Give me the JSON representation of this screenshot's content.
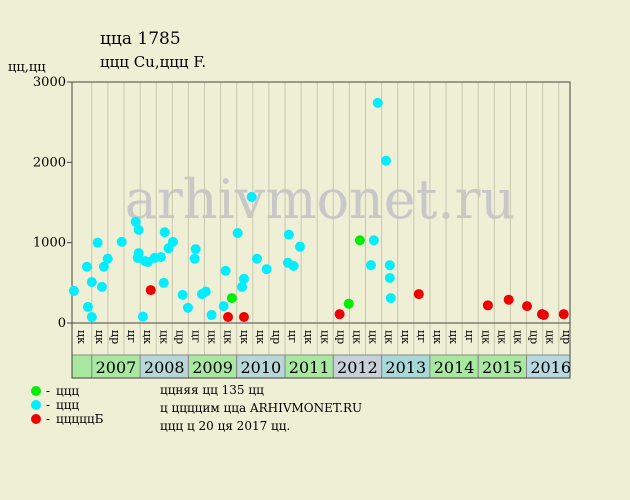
{
  "chart_data": {
    "type": "scatter",
    "title": "ццa 1785",
    "subtitle": "ццц Cu,ццц F.",
    "ylabel": "цц,цц",
    "watermark": "arhivmonet.ru",
    "xlim": [
      2006.59,
      2016.9
    ],
    "ylim": [
      0,
      3000
    ],
    "yticks": [
      0,
      1000,
      2000,
      3000
    ],
    "years": [
      null,
      "2007",
      "2008",
      "2009",
      "2010",
      "2011",
      "2012",
      "2013",
      "2014",
      "2015",
      "2016"
    ],
    "year_colors": [
      "#a8e8a0",
      "#a8e8a0",
      "#b8d8d8",
      "#a8e8a0",
      "#b8d8d8",
      "#a8e8a0",
      "#c8d0d8",
      "#a8d8d8",
      "#a8e8a0",
      "#a8e8a0",
      "#b8d8e0"
    ],
    "columns": [
      "цк",
      "цк",
      "цр",
      "цг",
      "цк",
      "цк",
      "цр",
      "цг",
      "цк",
      "цк",
      "цк",
      "цк",
      "цр",
      "цг",
      "цк",
      "цк",
      "цр",
      "цк",
      "цк",
      "цк",
      "цк",
      "цг",
      "цк",
      "цк",
      "цг",
      "цк",
      "цк",
      "цк",
      "цр",
      "цк",
      "цр"
    ],
    "series": [
      {
        "name": "ццц",
        "color": "#00ee00",
        "x": [
          2009.9,
          2012.32,
          2012.55
        ],
        "values": [
          310,
          240,
          1030
        ]
      },
      {
        "name": "ццц",
        "color": "#00eeff",
        "x": [
          2006.63,
          2006.9,
          2006.92,
          2007.0,
          2007.0,
          2007.12,
          2007.21,
          2007.25,
          2007.33,
          2007.62,
          2007.91,
          2007.97,
          2007.97,
          2007.95,
          2008.06,
          2008.1,
          2008.16,
          2008.3,
          2008.43,
          2008.49,
          2008.51,
          2008.59,
          2008.68,
          2008.88,
          2008.99,
          2009.15,
          2009.13,
          2009.28,
          2009.36,
          2009.48,
          2009.73,
          2009.77,
          2010.02,
          2010.11,
          2010.15,
          2010.31,
          2010.42,
          2010.62,
          2011.08,
          2011.06,
          2011.18,
          2011.31,
          2012.78,
          2012.84,
          2012.92,
          2013.09,
          2013.17,
          2013.17,
          2013.19
        ],
        "values": [
          400,
          700,
          200,
          510,
          75,
          1000,
          450,
          700,
          800,
          1010,
          1260,
          1160,
          870,
          810,
          80,
          770,
          760,
          810,
          820,
          500,
          1130,
          930,
          1010,
          350,
          190,
          920,
          800,
          360,
          390,
          100,
          210,
          650,
          1120,
          450,
          550,
          1570,
          800,
          670,
          1100,
          750,
          710,
          950,
          720,
          1030,
          2740,
          2020,
          720,
          560,
          310
        ]
      },
      {
        "name": "цццццБ",
        "color": "#ee0000",
        "x": [
          2008.22,
          2009.82,
          2010.15,
          2012.13,
          2013.77,
          2015.2,
          2015.63,
          2016.01,
          2016.32,
          2016.36,
          2016.77
        ],
        "values": [
          410,
          75,
          75,
          110,
          360,
          220,
          290,
          210,
          110,
          100,
          110
        ]
      }
    ],
    "notes": [
      "ццняя цц 135 цц",
      "ц ццццим цца ARHIVMONET.RU",
      "ццц ц 20 ця 2017 цц."
    ]
  }
}
